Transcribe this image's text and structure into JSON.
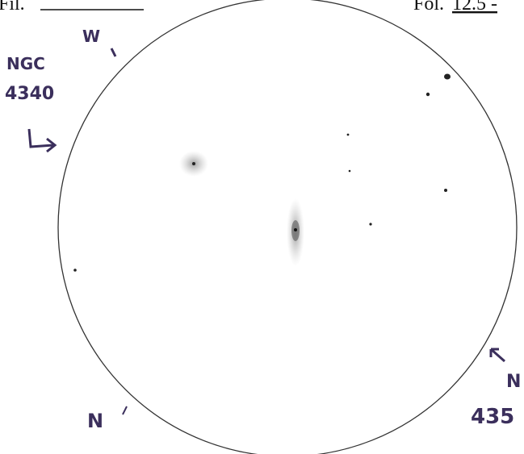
{
  "header": {
    "left_label": "Fil.",
    "right_label": "Fol.",
    "right_value": "12.5 -"
  },
  "labels": {
    "west": "W",
    "galaxy_left_name": "NGC",
    "galaxy_left_number": "4340",
    "north_left": "N",
    "north_right": "N",
    "galaxy_right_number": "435"
  }
}
